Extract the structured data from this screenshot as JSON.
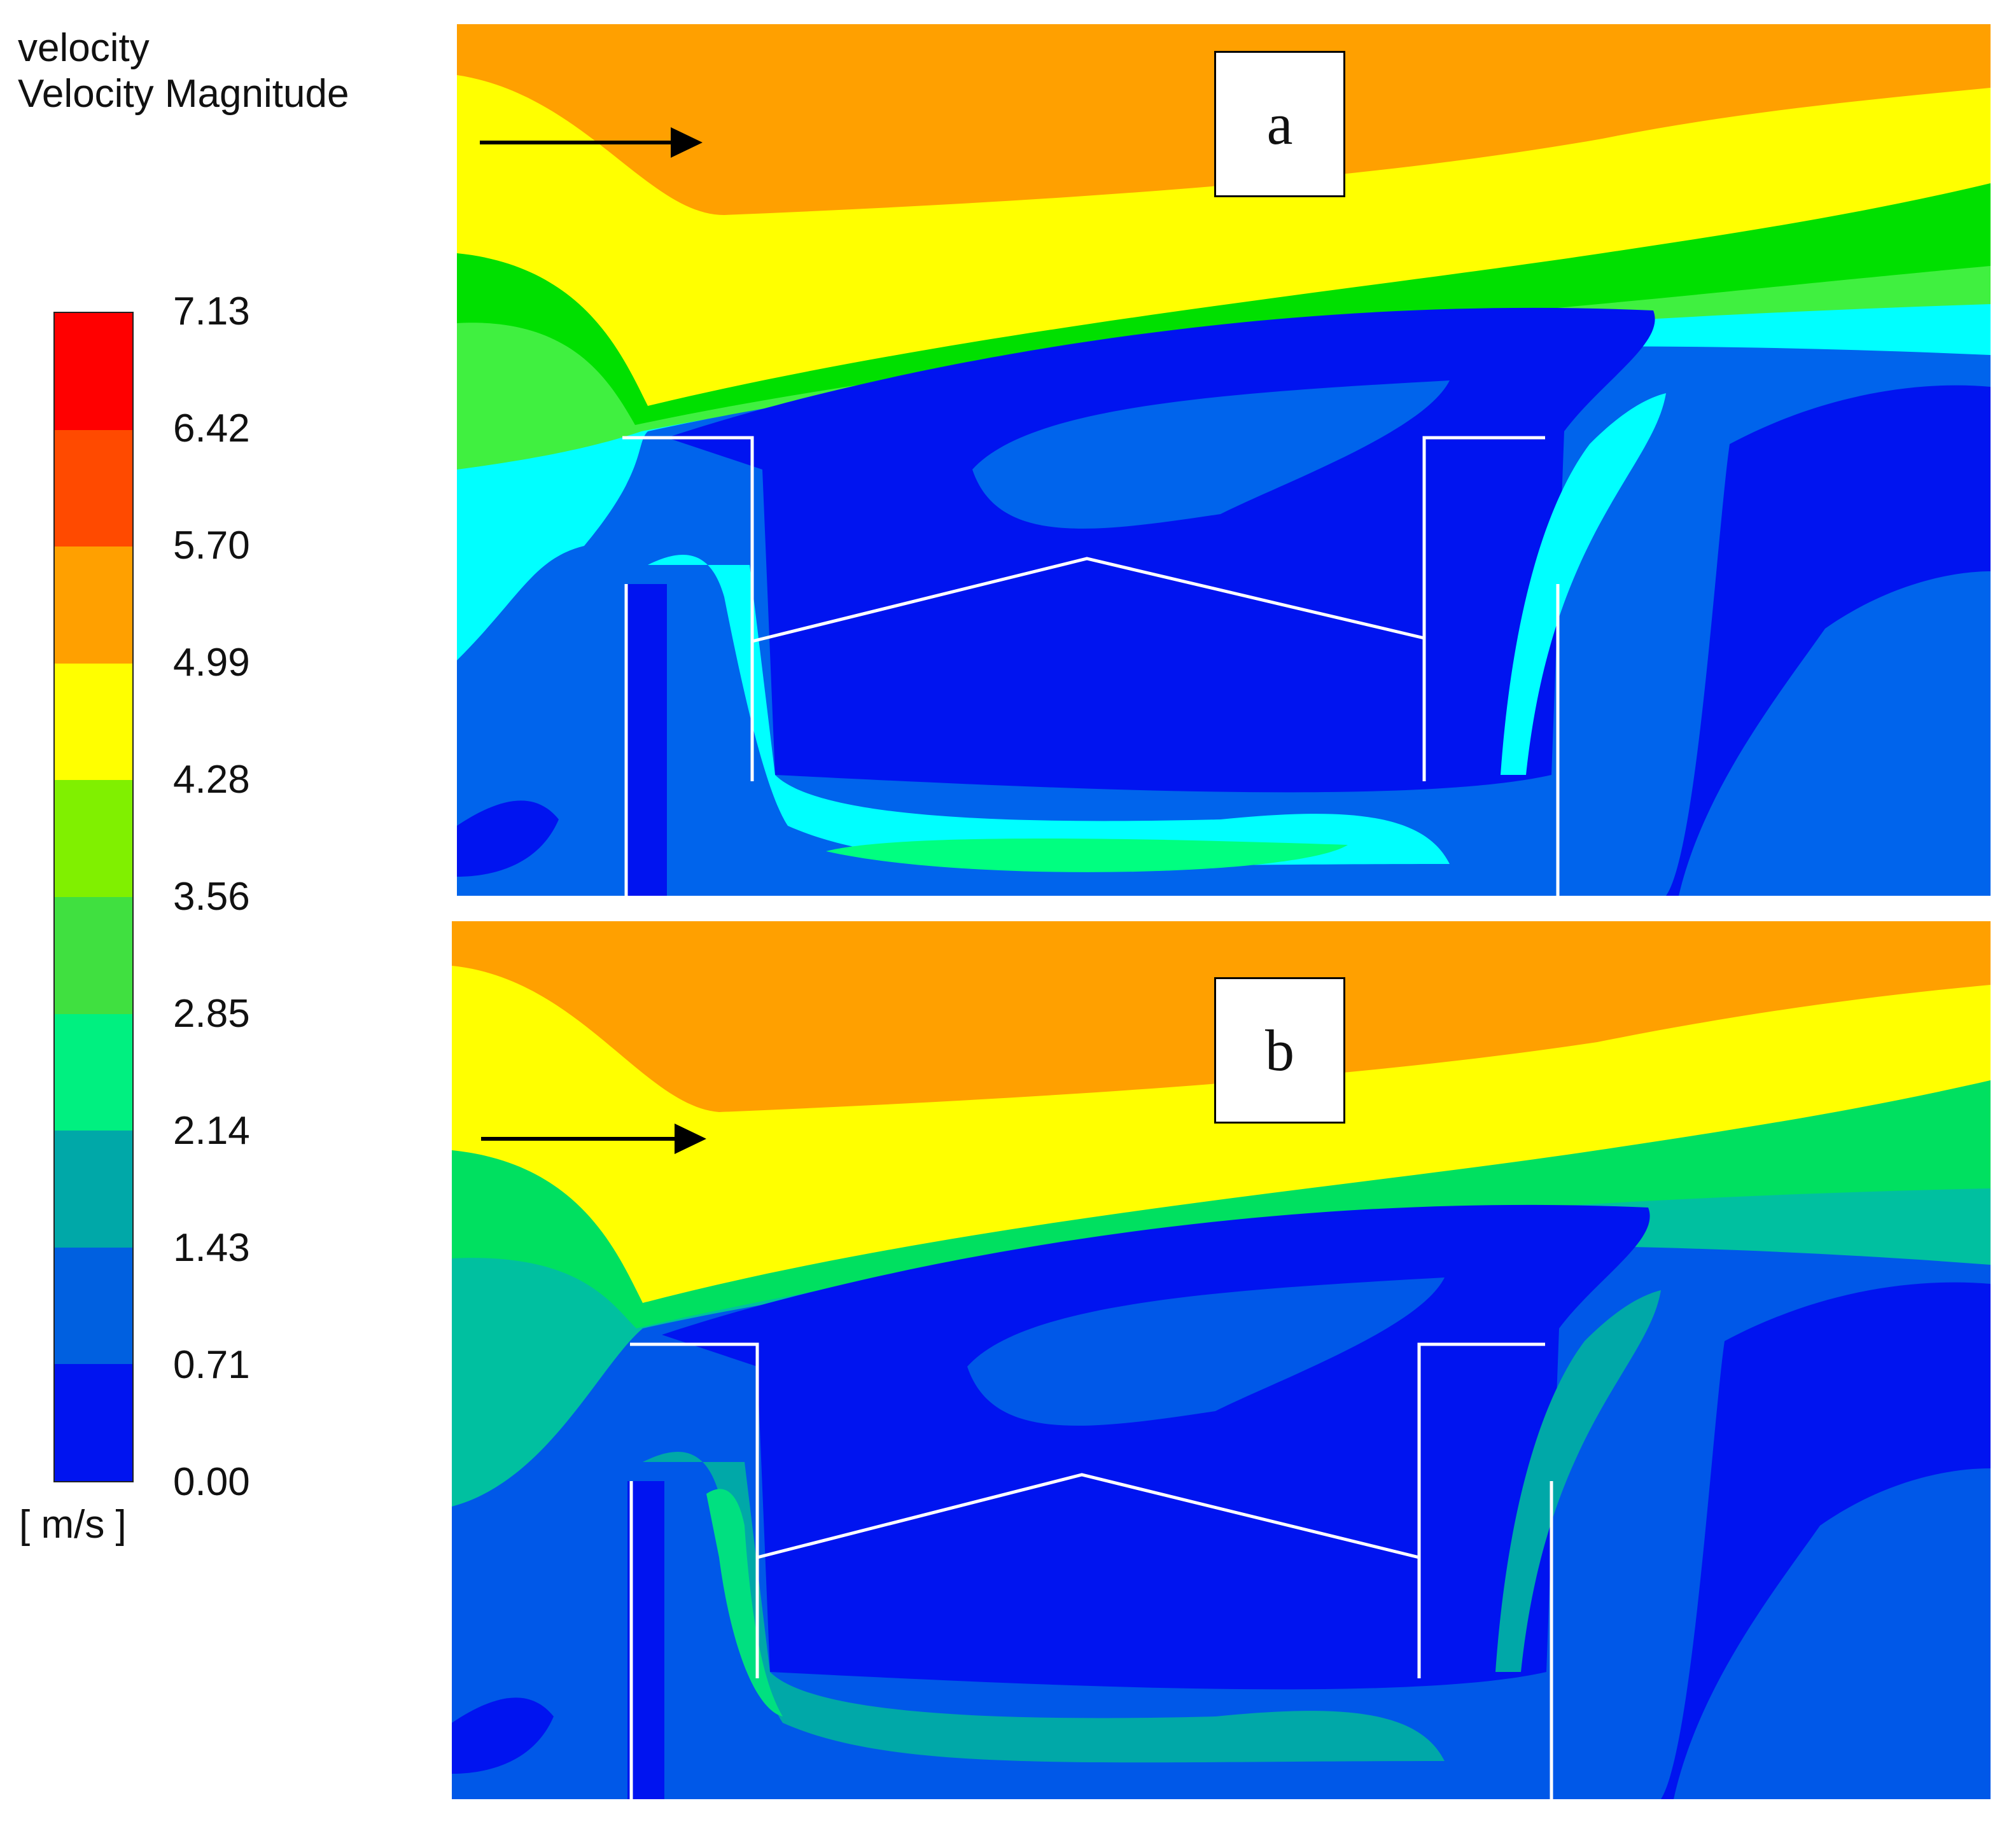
{
  "legend": {
    "title": "velocity\nVelocity Magnitude",
    "ticks": [
      "7.13",
      "6.42",
      "5.70",
      "4.99",
      "4.28",
      "3.56",
      "2.85",
      "2.14",
      "1.43",
      "0.71",
      "0.00"
    ],
    "unit": "[ m/s ]",
    "colors": [
      "#ff0000",
      "#ff4a00",
      "#ffa000",
      "#ffff00",
      "#80f000",
      "#40e040",
      "#00f080",
      "#00a8a8",
      "#0060e0",
      "#0014f0"
    ]
  },
  "panels": [
    {
      "label": "a",
      "colors": {
        "top": "#ffa000",
        "upper": "#ffff00",
        "mid": "#00e000",
        "mid2": "#40f040",
        "near": "#00ffff",
        "low": "#0064ec",
        "core": "#0014f0",
        "bottom": "#00ff80"
      }
    },
    {
      "label": "b",
      "colors": {
        "top": "#ffa000",
        "upper": "#ffff00",
        "mid": "#00e060",
        "mid2": "#00c0a0",
        "near": "#00a8a8",
        "low": "#0058e8",
        "core": "#0014f0",
        "bottom": "#00e080"
      }
    }
  ]
}
